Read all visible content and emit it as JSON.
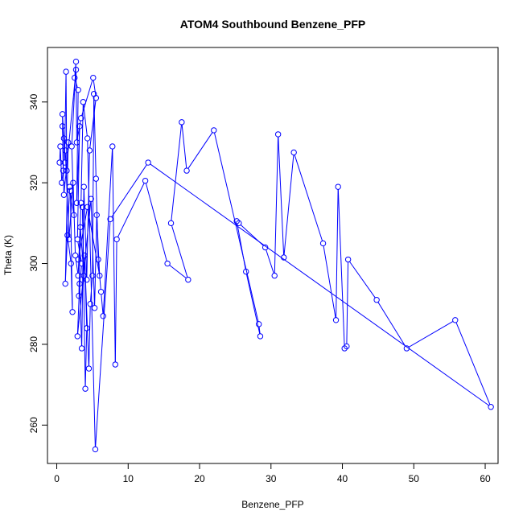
{
  "chart_data": {
    "type": "line",
    "title": "ATOM4 Southbound Benzene_PFP",
    "xlabel": "Benzene_PFP",
    "ylabel": "Theta (K)",
    "xlim": [
      -1.3,
      61.8
    ],
    "ylim": [
      250.5,
      353.5
    ],
    "x_ticks": [
      0,
      10,
      20,
      30,
      40,
      50,
      60
    ],
    "y_ticks": [
      260,
      280,
      300,
      320,
      340
    ],
    "x_tick_labels": [
      "0",
      "10",
      "20",
      "30",
      "40",
      "50",
      "60"
    ],
    "y_tick_labels": [
      "260",
      "280",
      "300",
      "320",
      "340"
    ],
    "grid": false,
    "legend": "none",
    "color": "#0000ff",
    "marker": "open-circle",
    "series": [
      {
        "x": [
          0.4,
          0.5,
          0.7,
          0.9,
          0.8,
          1.0,
          1.1,
          1.3,
          1.4,
          1.6,
          1.2,
          1.8,
          1.5,
          2.0,
          2.2,
          1.9,
          2.4,
          2.1,
          2.7,
          2.5,
          3.0,
          2.8,
          3.2,
          2.9,
          3.5,
          3.1,
          3.3,
          3.8,
          3.6,
          4.0,
          4.2,
          3.9,
          4.5,
          4.7,
          5.0,
          5.2,
          5.5,
          5.8,
          6.2,
          6.5,
          7.8,
          8.2,
          8.4,
          12.4,
          15.5,
          18.4,
          16.0,
          17.5,
          18.2,
          22.0,
          28.3,
          28.5,
          26.5,
          25.2,
          25.5,
          29.2,
          30.5,
          31.0,
          31.8,
          33.2,
          37.3,
          39.1,
          39.4,
          40.3,
          40.6,
          40.8,
          44.8,
          49.0,
          55.8,
          60.8,
          12.8,
          7.5,
          5.4,
          4.3,
          3.7,
          3.4,
          3.0,
          2.6,
          2.3,
          1.7,
          1.2,
          0.8,
          1.0,
          2.7,
          2.8,
          3.4,
          5.1,
          5.5,
          4.6,
          4.2,
          3.8,
          3.5,
          3.2,
          2.9,
          4.8,
          5.3,
          5.6,
          6.0,
          4.3,
          3.0
        ],
        "y": [
          325,
          329,
          320,
          323,
          337,
          331,
          325,
          347.5,
          323,
          330,
          295,
          319,
          307,
          300,
          288,
          318,
          312,
          329,
          350,
          346,
          343,
          315,
          334,
          306,
          300,
          292,
          309,
          297,
          314,
          269,
          284,
          302,
          274,
          290,
          297,
          342,
          321,
          301,
          293,
          287,
          329,
          275,
          306,
          320.5,
          300,
          296,
          310,
          335,
          323,
          333,
          285,
          282,
          298,
          310.5,
          310,
          304,
          297,
          332,
          301.5,
          327.5,
          305,
          286,
          319,
          279,
          279.5,
          301,
          291,
          279,
          286,
          264.5,
          325,
          311,
          254,
          331,
          340,
          315,
          297,
          302,
          320,
          306,
          328,
          334,
          317,
          348,
          330,
          336,
          346,
          341,
          328,
          296,
          319,
          279,
          295,
          282,
          316,
          289,
          312,
          297,
          314,
          301
        ]
      }
    ]
  }
}
